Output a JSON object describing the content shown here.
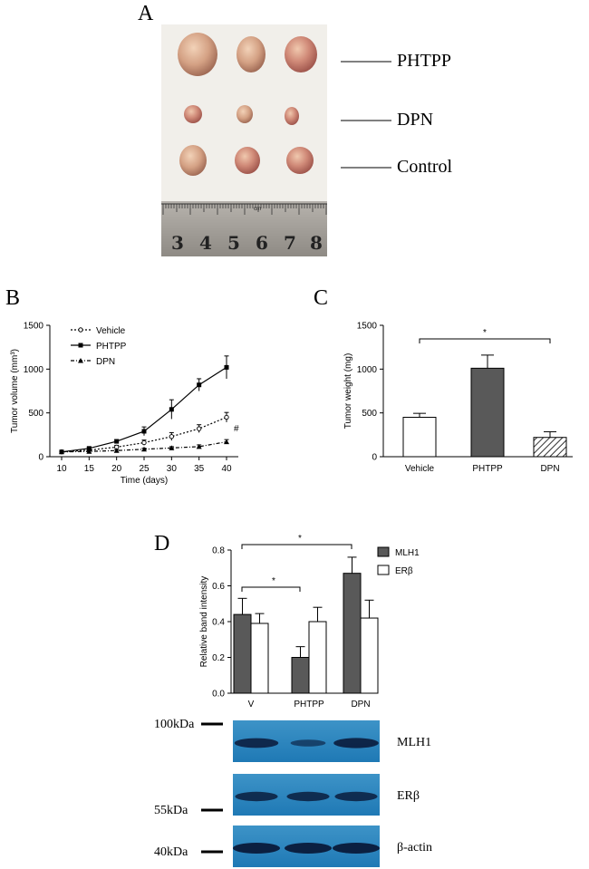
{
  "panels": {
    "a": "A",
    "b": "B",
    "c": "C",
    "d": "D"
  },
  "photo": {
    "labels": [
      "PHTPP",
      "DPN",
      "Control"
    ],
    "ruler_numbers": [
      "3",
      "4",
      "5",
      "6",
      "7",
      "8"
    ],
    "ruler_unit": "cm"
  },
  "chart_data": [
    {
      "id": "B",
      "type": "line",
      "xlabel": "Time (days)",
      "ylabel": "Tumor volume (mm³)",
      "x": [
        10,
        15,
        20,
        25,
        30,
        35,
        40
      ],
      "xlim": [
        10,
        40
      ],
      "ylim": [
        0,
        1500
      ],
      "yticks": [
        0,
        500,
        1000,
        1500
      ],
      "series": [
        {
          "name": "Vehicle",
          "values": [
            55,
            75,
            110,
            160,
            230,
            320,
            450
          ],
          "errors": [
            8,
            10,
            20,
            30,
            45,
            45,
            55
          ]
        },
        {
          "name": "PHTPP",
          "values": [
            55,
            95,
            175,
            290,
            540,
            820,
            1020
          ],
          "errors": [
            8,
            12,
            20,
            50,
            110,
            70,
            130
          ]
        },
        {
          "name": "DPN",
          "values": [
            55,
            60,
            70,
            85,
            100,
            115,
            170
          ],
          "errors": [
            5,
            8,
            10,
            12,
            15,
            20,
            25
          ]
        }
      ],
      "annotation": "#"
    },
    {
      "id": "C",
      "type": "bar",
      "ylabel": "Tumor weight (mg)",
      "categories": [
        "Vehicle",
        "PHTPP",
        "DPN"
      ],
      "values": [
        450,
        1010,
        220
      ],
      "errors": [
        45,
        150,
        65
      ],
      "ylim": [
        0,
        1500
      ],
      "yticks": [
        0,
        500,
        1000,
        1500
      ],
      "significance": "*"
    },
    {
      "id": "D",
      "type": "bar",
      "ylabel": "Relative band intensity",
      "categories": [
        "V",
        "PHTPP",
        "DPN"
      ],
      "series": [
        {
          "name": "MLH1",
          "values": [
            0.44,
            0.2,
            0.67
          ],
          "errors": [
            0.09,
            0.06,
            0.09
          ],
          "color": "#595959"
        },
        {
          "name": "ERβ",
          "values": [
            0.39,
            0.4,
            0.42
          ],
          "errors": [
            0.055,
            0.08,
            0.1
          ],
          "color": "#ffffff"
        }
      ],
      "ylim": [
        0,
        0.8
      ],
      "yticks": [
        "0.0",
        "0.2",
        "0.4",
        "0.6",
        "0.8"
      ],
      "significance": [
        "*",
        "*"
      ]
    }
  ],
  "blot": {
    "bands": [
      "MLH1",
      "ERβ",
      "β-actin"
    ],
    "markers": [
      "100kDa",
      "55kDa",
      "40kDa"
    ],
    "intensity": {
      "MLH1": [
        0.85,
        0.45,
        0.9
      ],
      "ERβ": [
        0.8,
        0.8,
        0.8
      ],
      "β-actin": [
        1.0,
        1.0,
        1.0
      ]
    }
  }
}
